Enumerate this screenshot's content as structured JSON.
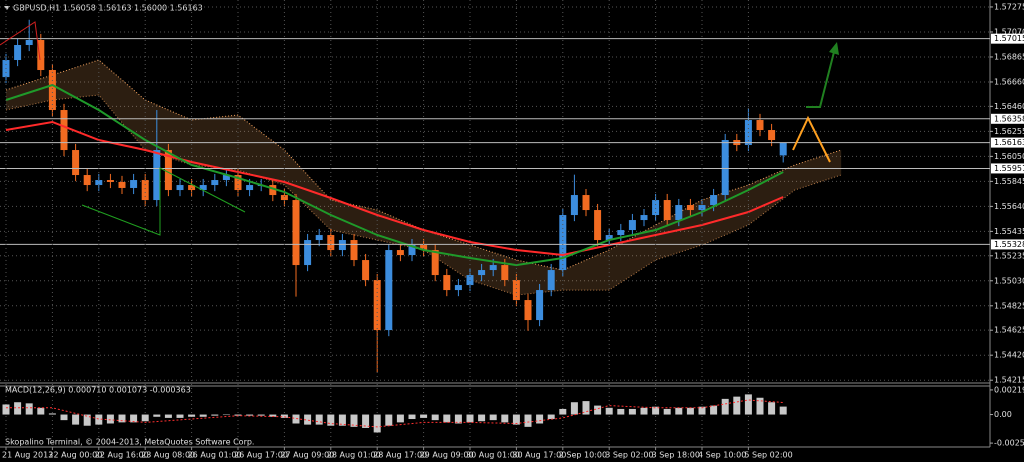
{
  "chart_data": [
    {
      "type": "candlestick",
      "title": "GBPUSD,H1  1.56058 1.56163 1.56000 1.56163",
      "categories": [
        "21 Aug 2013",
        null,
        null,
        null,
        "22 Aug 00:00",
        null,
        null,
        null,
        "22 Aug 16:00",
        null,
        null,
        null,
        "23 Aug 08:00",
        null,
        null,
        null,
        "26 Aug 01:00",
        null,
        null,
        null,
        "26 Aug 17:00",
        null,
        null,
        null,
        "27 Aug 09:00",
        null,
        null,
        null,
        "28 Aug 01:00",
        null,
        null,
        null,
        "28 Aug 17:00",
        null,
        null,
        null,
        "29 Aug 09:00",
        null,
        null,
        null,
        "30 Aug 01:00",
        null,
        null,
        null,
        "30 Aug 17:00",
        null,
        null,
        null,
        "2 Sep 10:00",
        null,
        null,
        null,
        "3 Sep 02:00",
        null,
        null,
        null,
        "3 Sep 18:00",
        null,
        null,
        null,
        "4 Sep 10:00",
        null,
        null,
        null,
        "5 Sep 02:00",
        null,
        null,
        null
      ],
      "open": [
        1.567,
        1.5684,
        1.56963,
        1.57004,
        1.56758,
        1.5643,
        1.56102,
        1.55897,
        1.55815,
        1.55856,
        1.5584,
        1.55791,
        1.55856,
        1.55692,
        1.56102,
        1.55774,
        1.55815,
        1.55774,
        1.55815,
        1.55856,
        1.55897,
        1.55774,
        1.55815,
        1.55815,
        1.55733,
        1.55692,
        1.55159,
        1.55364,
        1.55405,
        1.55282,
        1.55364,
        1.552,
        1.55036,
        1.54626,
        1.55282,
        1.55241,
        1.55323,
        1.55282,
        1.55077,
        1.54954,
        1.54995,
        1.55077,
        1.55118,
        1.55159,
        1.55036,
        1.54872,
        1.54708,
        1.54954,
        1.55118,
        1.55569,
        1.55733,
        1.5561,
        1.55364,
        1.55405,
        1.55446,
        1.55528,
        1.55569,
        1.55692,
        1.55528,
        1.55651,
        1.5561,
        1.55651,
        1.55733,
        1.56184,
        1.56143,
        1.56348,
        1.56266,
        1.56058
      ],
      "high": [
        1.5689,
        1.57013,
        1.5717,
        1.57054,
        1.56808,
        1.5648,
        1.56152,
        1.55947,
        1.55906,
        1.55906,
        1.5589,
        1.55906,
        1.55906,
        1.5643,
        1.56152,
        1.55865,
        1.55865,
        1.55865,
        1.55906,
        1.55947,
        1.55947,
        1.55865,
        1.55865,
        1.55865,
        1.55783,
        1.55742,
        1.55414,
        1.55455,
        1.55455,
        1.55414,
        1.55414,
        1.5525,
        1.55086,
        1.55332,
        1.55332,
        1.55373,
        1.55373,
        1.55332,
        1.55127,
        1.55045,
        1.55127,
        1.55168,
        1.55209,
        1.55209,
        1.55086,
        1.54922,
        1.55004,
        1.55168,
        1.55619,
        1.559,
        1.55783,
        1.5566,
        1.55455,
        1.55496,
        1.55578,
        1.55619,
        1.55742,
        1.55742,
        1.55701,
        1.55701,
        1.55701,
        1.55783,
        1.56234,
        1.56234,
        1.56447,
        1.56398,
        1.56316,
        1.56163
      ],
      "low": [
        1.5665,
        1.5679,
        1.56913,
        1.56708,
        1.5638,
        1.56052,
        1.55847,
        1.55765,
        1.55765,
        1.5579,
        1.55741,
        1.55741,
        1.55642,
        1.55642,
        1.55724,
        1.55724,
        1.55724,
        1.55724,
        1.55765,
        1.55806,
        1.55724,
        1.55724,
        1.55765,
        1.55683,
        1.55642,
        1.549,
        1.55109,
        1.55314,
        1.55232,
        1.55232,
        1.5515,
        1.54986,
        1.54282,
        1.54576,
        1.55191,
        1.55191,
        1.55232,
        1.55027,
        1.54904,
        1.54904,
        1.54945,
        1.55027,
        1.55068,
        1.54986,
        1.54822,
        1.5462,
        1.54658,
        1.54904,
        1.55068,
        1.55519,
        1.5556,
        1.55314,
        1.55314,
        1.55355,
        1.55396,
        1.55478,
        1.55519,
        1.55478,
        1.55478,
        1.5556,
        1.5556,
        1.55601,
        1.55683,
        1.56093,
        1.56093,
        1.56216,
        1.56134,
        1.56
      ],
      "close": [
        1.5684,
        1.56963,
        1.57004,
        1.56758,
        1.5643,
        1.56102,
        1.55897,
        1.55815,
        1.55856,
        1.5584,
        1.55791,
        1.55856,
        1.55692,
        1.56102,
        1.55774,
        1.55815,
        1.55774,
        1.55815,
        1.55856,
        1.55897,
        1.55774,
        1.55815,
        1.55815,
        1.55733,
        1.55692,
        1.55159,
        1.55364,
        1.55405,
        1.55282,
        1.55364,
        1.552,
        1.55036,
        1.54626,
        1.55282,
        1.55241,
        1.55323,
        1.55282,
        1.55077,
        1.54954,
        1.54995,
        1.55077,
        1.55118,
        1.55159,
        1.55036,
        1.54872,
        1.54708,
        1.54954,
        1.55118,
        1.55569,
        1.55733,
        1.5561,
        1.55364,
        1.55405,
        1.55446,
        1.55528,
        1.55569,
        1.55692,
        1.55528,
        1.55651,
        1.5561,
        1.55651,
        1.55733,
        1.56184,
        1.56143,
        1.56348,
        1.56266,
        1.56184,
        1.56163
      ],
      "up_color": "#3c8dde",
      "down_color": "#f26b21",
      "lines": [
        {
          "color": "#ff2a2a",
          "x": [
            0,
            4,
            8,
            12,
            16,
            20,
            24,
            28,
            32,
            36,
            40,
            44,
            48,
            52,
            56,
            60,
            64,
            67
          ],
          "values": [
            1.56266,
            1.56332,
            1.56184,
            1.56102,
            1.56004,
            1.55922,
            1.5584,
            1.55709,
            1.55569,
            1.55446,
            1.55348,
            1.55282,
            1.55241,
            1.55323,
            1.55405,
            1.55487,
            1.55594,
            1.55717
          ]
        },
        {
          "color": "#1f9a2a",
          "x": [
            0,
            4,
            8,
            12,
            16,
            20,
            24,
            28,
            32,
            36,
            40,
            44,
            48,
            52,
            56,
            60,
            64,
            67
          ],
          "values": [
            1.56512,
            1.56635,
            1.5643,
            1.56184,
            1.55979,
            1.55873,
            1.55758,
            1.55569,
            1.55405,
            1.55282,
            1.55217,
            1.55159,
            1.55217,
            1.55364,
            1.55446,
            1.55594,
            1.55774,
            1.55922
          ]
        }
      ],
      "cloud": {
        "color": "#f4a460",
        "x": [
          0,
          4,
          8,
          12,
          16,
          20,
          24,
          28,
          32,
          36,
          40,
          44,
          48,
          52,
          56,
          60,
          64,
          68,
          72
        ],
        "upper": [
          1.56594,
          1.56717,
          1.5684,
          1.56512,
          1.56348,
          1.56389,
          1.56102,
          1.55692,
          1.5561,
          1.55446,
          1.55323,
          1.552,
          1.55118,
          1.55282,
          1.55487,
          1.55692,
          1.55815,
          1.55979,
          1.56102
        ],
        "lower": [
          1.5643,
          1.56512,
          1.56553,
          1.56102,
          1.55979,
          1.55938,
          1.55815,
          1.55446,
          1.55364,
          1.55282,
          1.55036,
          1.54913,
          1.54954,
          1.54954,
          1.552,
          1.55323,
          1.55487,
          1.55774,
          1.55897
        ]
      },
      "ylim": [
        1.54192,
        1.57332
      ],
      "yticks": [
        1.57275,
        {
          "value": 1.5707,
          "label": "1.57070"
        },
        1.56865,
        {
          "value": 1.5666,
          "label": "1.56660"
        },
        {
          "value": 1.5646,
          "label": "1.56460"
        },
        1.56255,
        {
          "value": 1.5605,
          "label": "1.56050"
        },
        1.55845,
        {
          "value": 1.5564,
          "label": "1.55640"
        },
        1.55435,
        1.55235,
        {
          "value": 1.5503,
          "label": "1.55030"
        },
        1.54825,
        1.54625,
        {
          "value": 1.5442,
          "label": "1.54420"
        },
        1.54215
      ],
      "levels": [
        1.57015,
        1.56358,
        1.56163,
        1.55951,
        1.55328
      ],
      "grid": true
    },
    {
      "type": "bar",
      "title": "MACD(12,26,9) 0.000710 0.001073 -0.000363",
      "values": [
        0.0009,
        0.0011,
        0.001,
        0.0006,
        0.0001,
        -0.0005,
        -0.0009,
        -0.001,
        -0.0009,
        -0.0008,
        -0.0007,
        -0.0007,
        -0.0006,
        -0.0002,
        -0.0003,
        -0.0003,
        -0.0002,
        -0.0002,
        -0.0001,
        0,
        -0.0001,
        -0.0001,
        -0.0001,
        -0.0002,
        -0.0003,
        -0.0008,
        -0.0009,
        -0.0009,
        -0.001,
        -0.001,
        -0.0011,
        -0.0012,
        -0.0016,
        -0.001,
        -0.0007,
        -0.0004,
        -0.0003,
        -0.0005,
        -0.0007,
        -0.0008,
        -0.0007,
        -0.0006,
        -0.0005,
        -0.0007,
        -0.0009,
        -0.0011,
        -0.0008,
        -0.0004,
        0.0005,
        0.0011,
        0.0012,
        0.0008,
        0.0006,
        0.0005,
        0.0005,
        0.0006,
        0.0007,
        0.0005,
        0.0006,
        0.0006,
        0.0007,
        0.0008,
        0.0014,
        0.0016,
        0.0018,
        0.0015,
        0.0011,
        0.00071
      ],
      "color": "#c8c8c8",
      "signal": {
        "color": "#ff3030",
        "x": [
          0,
          4,
          8,
          12,
          16,
          20,
          24,
          28,
          32,
          36,
          40,
          44,
          48,
          52,
          56,
          60,
          64,
          67
        ],
        "values": [
          0.0006,
          0.0006,
          -0.0004,
          -0.0007,
          -0.0004,
          -0.0001,
          -0.0002,
          -0.0008,
          -0.0011,
          -0.0007,
          -0.0007,
          -0.0008,
          -0.0003,
          0.0008,
          0.0006,
          0.0006,
          0.0013,
          0.001073
        ]
      },
      "ylim": [
        -0.0029,
        0.00255
      ],
      "yticks": [
        0.002199,
        {
          "value": 0,
          "label": "0.00"
        },
        -0.002551
      ]
    }
  ],
  "footer": "Skopalino Terminal, © 2004-2013, MetaQuotes Software Corp."
}
